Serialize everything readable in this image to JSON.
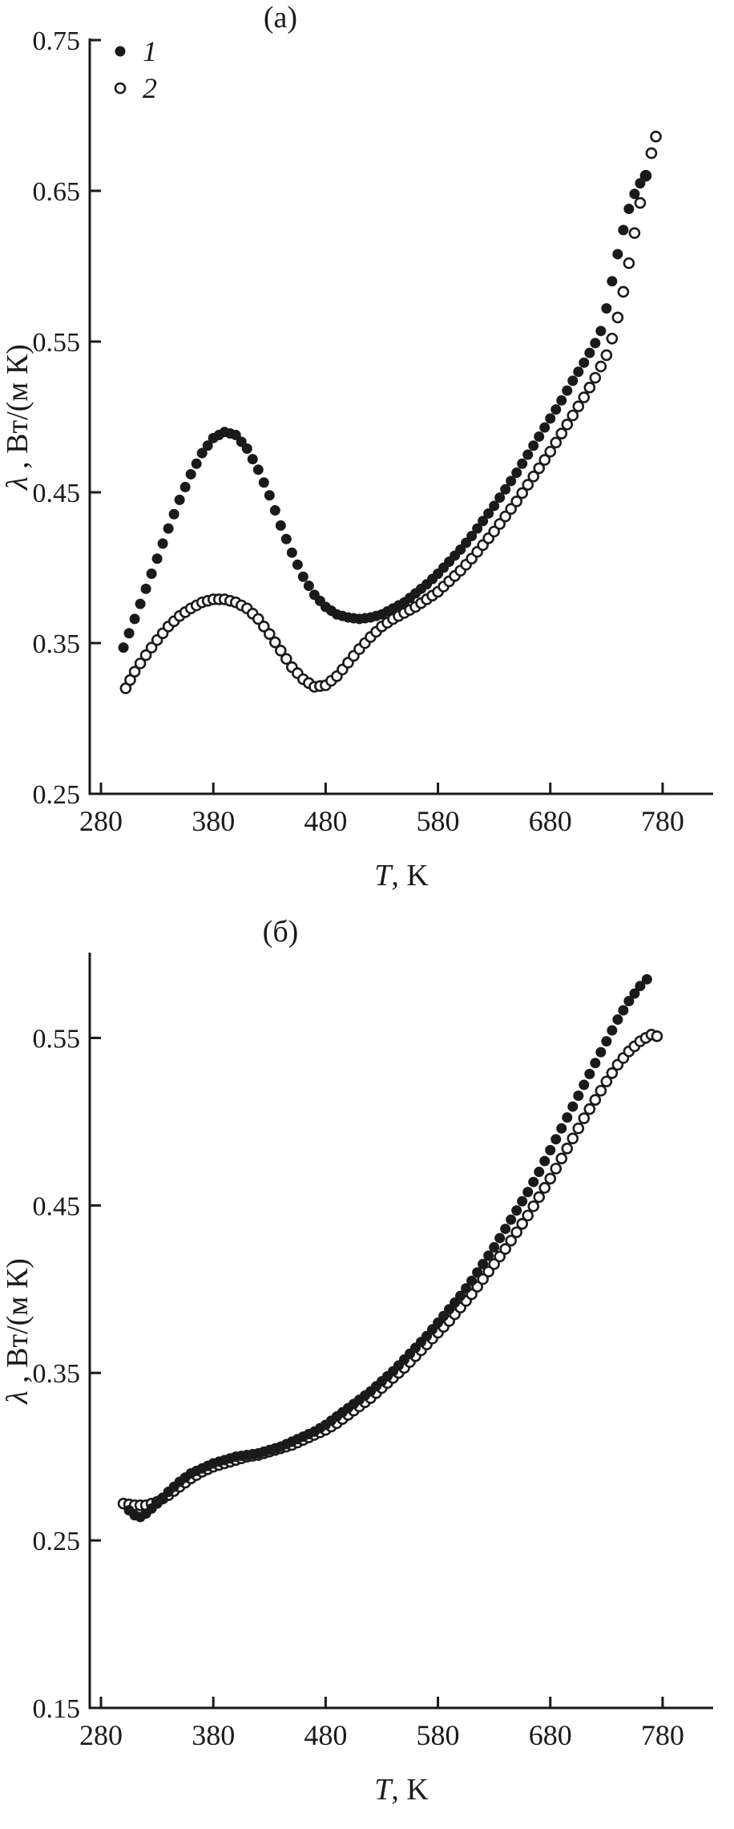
{
  "figure": {
    "ink_color": "#1a1a1a",
    "background": "#ffffff"
  },
  "chart_data": [
    {
      "type": "scatter",
      "label": "(а)",
      "xlabel": {
        "italic": "T",
        "rest": ", K"
      },
      "ylabel": {
        "italic": "λ",
        "rest": " , Вт/(м К)"
      },
      "xlim": [
        270,
        825
      ],
      "ylim": [
        0.25,
        0.75
      ],
      "xticks": [
        280,
        380,
        480,
        580,
        680,
        780
      ],
      "yticks": [
        0.25,
        0.35,
        0.45,
        0.55,
        0.65,
        0.75
      ],
      "grid": false,
      "legend_position": "top-left",
      "legend": [
        {
          "label": "1",
          "marker": "filled"
        },
        {
          "label": "2",
          "marker": "open"
        }
      ],
      "series": [
        {
          "name": "1",
          "marker": "filled",
          "points": [
            [
              300,
              0.347
            ],
            [
              310,
              0.366
            ],
            [
              320,
              0.386
            ],
            [
              330,
              0.406
            ],
            [
              340,
              0.426
            ],
            [
              350,
              0.445
            ],
            [
              360,
              0.462
            ],
            [
              370,
              0.476
            ],
            [
              380,
              0.486
            ],
            [
              390,
              0.49
            ],
            [
              400,
              0.488
            ],
            [
              410,
              0.479
            ],
            [
              420,
              0.465
            ],
            [
              430,
              0.448
            ],
            [
              440,
              0.428
            ],
            [
              450,
              0.41
            ],
            [
              460,
              0.394
            ],
            [
              470,
              0.382
            ],
            [
              480,
              0.374
            ],
            [
              490,
              0.369
            ],
            [
              500,
              0.367
            ],
            [
              510,
              0.366
            ],
            [
              520,
              0.367
            ],
            [
              530,
              0.369
            ],
            [
              540,
              0.373
            ],
            [
              550,
              0.377
            ],
            [
              560,
              0.383
            ],
            [
              570,
              0.389
            ],
            [
              580,
              0.396
            ],
            [
              590,
              0.404
            ],
            [
              600,
              0.412
            ],
            [
              610,
              0.421
            ],
            [
              620,
              0.431
            ],
            [
              630,
              0.441
            ],
            [
              640,
              0.452
            ],
            [
              650,
              0.463
            ],
            [
              660,
              0.475
            ],
            [
              670,
              0.487
            ],
            [
              680,
              0.499
            ],
            [
              690,
              0.511
            ],
            [
              700,
              0.524
            ],
            [
              710,
              0.536
            ],
            [
              720,
              0.549
            ],
            [
              725,
              0.557
            ],
            [
              730,
              0.572
            ],
            [
              735,
              0.59
            ],
            [
              740,
              0.608
            ],
            [
              745,
              0.624
            ],
            [
              750,
              0.638
            ],
            [
              755,
              0.648
            ],
            [
              760,
              0.655
            ],
            [
              765,
              0.66
            ]
          ]
        },
        {
          "name": "2",
          "marker": "open",
          "points": [
            [
              302,
              0.32
            ],
            [
              310,
              0.331
            ],
            [
              320,
              0.342
            ],
            [
              330,
              0.352
            ],
            [
              340,
              0.361
            ],
            [
              350,
              0.368
            ],
            [
              360,
              0.373
            ],
            [
              370,
              0.377
            ],
            [
              380,
              0.379
            ],
            [
              390,
              0.379
            ],
            [
              400,
              0.377
            ],
            [
              410,
              0.373
            ],
            [
              420,
              0.366
            ],
            [
              430,
              0.356
            ],
            [
              440,
              0.345
            ],
            [
              450,
              0.334
            ],
            [
              460,
              0.326
            ],
            [
              470,
              0.321
            ],
            [
              480,
              0.322
            ],
            [
              490,
              0.328
            ],
            [
              500,
              0.337
            ],
            [
              510,
              0.346
            ],
            [
              520,
              0.354
            ],
            [
              530,
              0.361
            ],
            [
              540,
              0.366
            ],
            [
              550,
              0.37
            ],
            [
              560,
              0.374
            ],
            [
              570,
              0.379
            ],
            [
              580,
              0.384
            ],
            [
              590,
              0.391
            ],
            [
              600,
              0.398
            ],
            [
              610,
              0.406
            ],
            [
              620,
              0.415
            ],
            [
              630,
              0.424
            ],
            [
              640,
              0.434
            ],
            [
              650,
              0.444
            ],
            [
              660,
              0.455
            ],
            [
              670,
              0.466
            ],
            [
              680,
              0.477
            ],
            [
              690,
              0.489
            ],
            [
              700,
              0.501
            ],
            [
              710,
              0.513
            ],
            [
              720,
              0.526
            ],
            [
              730,
              0.541
            ],
            [
              735,
              0.552
            ],
            [
              740,
              0.566
            ],
            [
              745,
              0.583
            ],
            [
              750,
              0.602
            ],
            [
              755,
              0.622
            ],
            [
              760,
              0.642
            ],
            [
              765,
              0.66
            ],
            [
              770,
              0.675
            ],
            [
              774,
              0.686
            ]
          ]
        }
      ]
    },
    {
      "type": "scatter",
      "label": "(б)",
      "xlabel": {
        "italic": "T",
        "rest": ", K"
      },
      "ylabel": {
        "italic": "λ",
        "rest": " , Вт/(м К)"
      },
      "xlim": [
        270,
        825
      ],
      "ylim": [
        0.15,
        0.6
      ],
      "xticks": [
        280,
        380,
        480,
        580,
        680,
        780
      ],
      "yticks": [
        0.15,
        0.25,
        0.35,
        0.45,
        0.55
      ],
      "grid": false,
      "legend_position": "none",
      "legend": [],
      "series": [
        {
          "name": "1",
          "marker": "filled",
          "points": [
            [
              305,
              0.268
            ],
            [
              310,
              0.265
            ],
            [
              315,
              0.264
            ],
            [
              320,
              0.266
            ],
            [
              330,
              0.272
            ],
            [
              340,
              0.279
            ],
            [
              350,
              0.285
            ],
            [
              360,
              0.29
            ],
            [
              370,
              0.293
            ],
            [
              380,
              0.296
            ],
            [
              390,
              0.298
            ],
            [
              400,
              0.3
            ],
            [
              410,
              0.301
            ],
            [
              420,
              0.302
            ],
            [
              430,
              0.304
            ],
            [
              440,
              0.306
            ],
            [
              450,
              0.309
            ],
            [
              460,
              0.312
            ],
            [
              470,
              0.315
            ],
            [
              480,
              0.319
            ],
            [
              490,
              0.324
            ],
            [
              500,
              0.329
            ],
            [
              510,
              0.334
            ],
            [
              520,
              0.339
            ],
            [
              530,
              0.345
            ],
            [
              540,
              0.351
            ],
            [
              550,
              0.358
            ],
            [
              560,
              0.365
            ],
            [
              570,
              0.372
            ],
            [
              580,
              0.38
            ],
            [
              590,
              0.388
            ],
            [
              600,
              0.396
            ],
            [
              610,
              0.405
            ],
            [
              620,
              0.415
            ],
            [
              630,
              0.425
            ],
            [
              640,
              0.436
            ],
            [
              650,
              0.447
            ],
            [
              660,
              0.458
            ],
            [
              670,
              0.47
            ],
            [
              680,
              0.483
            ],
            [
              690,
              0.496
            ],
            [
              700,
              0.509
            ],
            [
              710,
              0.522
            ],
            [
              720,
              0.535
            ],
            [
              730,
              0.548
            ],
            [
              740,
              0.561
            ],
            [
              750,
              0.572
            ],
            [
              760,
              0.581
            ],
            [
              766,
              0.585
            ]
          ]
        },
        {
          "name": "2",
          "marker": "open",
          "points": [
            [
              300,
              0.272
            ],
            [
              310,
              0.271
            ],
            [
              320,
              0.271
            ],
            [
              330,
              0.273
            ],
            [
              340,
              0.277
            ],
            [
              350,
              0.282
            ],
            [
              360,
              0.287
            ],
            [
              370,
              0.291
            ],
            [
              380,
              0.294
            ],
            [
              390,
              0.296
            ],
            [
              400,
              0.298
            ],
            [
              410,
              0.3
            ],
            [
              420,
              0.301
            ],
            [
              430,
              0.303
            ],
            [
              440,
              0.305
            ],
            [
              450,
              0.307
            ],
            [
              460,
              0.31
            ],
            [
              470,
              0.313
            ],
            [
              480,
              0.316
            ],
            [
              490,
              0.32
            ],
            [
              500,
              0.325
            ],
            [
              510,
              0.33
            ],
            [
              520,
              0.335
            ],
            [
              530,
              0.341
            ],
            [
              540,
              0.347
            ],
            [
              550,
              0.353
            ],
            [
              560,
              0.36
            ],
            [
              570,
              0.367
            ],
            [
              580,
              0.374
            ],
            [
              590,
              0.381
            ],
            [
              600,
              0.389
            ],
            [
              610,
              0.397
            ],
            [
              620,
              0.406
            ],
            [
              630,
              0.415
            ],
            [
              640,
              0.424
            ],
            [
              650,
              0.434
            ],
            [
              660,
              0.444
            ],
            [
              670,
              0.455
            ],
            [
              680,
              0.466
            ],
            [
              690,
              0.478
            ],
            [
              700,
              0.49
            ],
            [
              710,
              0.502
            ],
            [
              720,
              0.513
            ],
            [
              730,
              0.524
            ],
            [
              740,
              0.534
            ],
            [
              750,
              0.542
            ],
            [
              760,
              0.548
            ],
            [
              770,
              0.552
            ],
            [
              775,
              0.551
            ]
          ]
        }
      ]
    }
  ]
}
